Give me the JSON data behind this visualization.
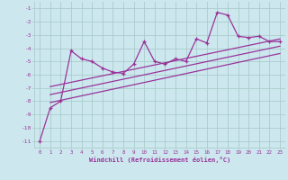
{
  "xlabel": "Windchill (Refroidissement éolien,°C)",
  "bg_color": "#cce8ee",
  "line_color": "#993399",
  "grid_color": "#aacccc",
  "xlim": [
    -0.5,
    23.5
  ],
  "ylim": [
    -11.5,
    -0.5
  ],
  "xticks": [
    0,
    1,
    2,
    3,
    4,
    5,
    6,
    7,
    8,
    9,
    10,
    11,
    12,
    13,
    14,
    15,
    16,
    17,
    18,
    19,
    20,
    21,
    22,
    23
  ],
  "yticks": [
    -1,
    -2,
    -3,
    -4,
    -5,
    -6,
    -7,
    -8,
    -9,
    -10,
    -11
  ],
  "main_x": [
    0,
    1,
    2,
    3,
    4,
    5,
    6,
    7,
    8,
    9,
    10,
    11,
    12,
    13,
    14,
    15,
    16,
    17,
    18,
    19,
    20,
    21,
    22,
    23
  ],
  "main_y": [
    -11.0,
    -8.5,
    -8.0,
    -4.2,
    -4.8,
    -5.0,
    -5.5,
    -5.8,
    -5.9,
    -5.2,
    -3.5,
    -5.0,
    -5.2,
    -4.8,
    -5.0,
    -3.3,
    -3.6,
    -1.3,
    -1.5,
    -3.1,
    -3.2,
    -3.1,
    -3.5,
    -3.5
  ],
  "upper_line_x": [
    1,
    23
  ],
  "upper_line_y": [
    -6.9,
    -3.3
  ],
  "lower_line_x": [
    1,
    23
  ],
  "lower_line_y": [
    -8.1,
    -4.4
  ],
  "mid_line_x": [
    1,
    23
  ],
  "mid_line_y": [
    -7.5,
    -3.85
  ]
}
